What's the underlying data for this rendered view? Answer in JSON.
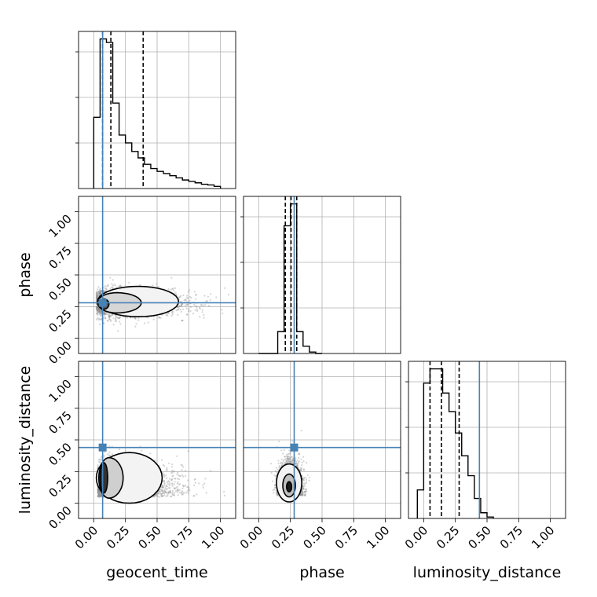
{
  "chart_data": {
    "type": "corner",
    "parameters": [
      "geocent_time",
      "phase",
      "luminosity_distance"
    ],
    "axis_range": [
      -0.12,
      1.12
    ],
    "tick_values": [
      0.0,
      0.25,
      0.5,
      0.75,
      1.0
    ],
    "tick_labels": [
      "0.00",
      "0.25",
      "0.50",
      "0.75",
      "1.00"
    ],
    "grid": true,
    "colors": {
      "truth": "#4682b4",
      "hist": "#000000",
      "points": "#888888"
    },
    "truths": {
      "geocent_time": 0.07,
      "phase": 0.28,
      "luminosity_distance": 0.44
    },
    "quantiles": {
      "geocent_time": [
        0.07,
        0.135,
        0.39
      ],
      "phase": [
        0.21,
        0.255,
        0.3
      ],
      "luminosity_distance": [
        0.05,
        0.14,
        0.28
      ]
    },
    "histograms": {
      "geocent_time": {
        "bins": [
          0.0,
          0.05,
          0.1,
          0.15,
          0.2,
          0.25,
          0.3,
          0.35,
          0.4,
          0.45,
          0.5,
          0.55,
          0.6,
          0.65,
          0.7,
          0.75,
          0.8,
          0.85,
          0.9,
          0.95,
          1.0
        ],
        "counts": [
          1.0,
          2.1,
          2.05,
          1.2,
          0.75,
          0.64,
          0.52,
          0.43,
          0.34,
          0.28,
          0.24,
          0.21,
          0.18,
          0.15,
          0.12,
          0.1,
          0.08,
          0.06,
          0.05,
          0.03
        ]
      },
      "phase": {
        "bins": [
          0.0,
          0.05,
          0.1,
          0.15,
          0.2,
          0.25,
          0.3,
          0.35,
          0.4,
          0.45,
          0.5
        ],
        "counts": [
          0.0,
          0.0,
          0.0,
          0.3,
          1.75,
          2.05,
          0.3,
          0.1,
          0.02,
          0.0
        ]
      },
      "luminosity_distance": {
        "bins": [
          -0.05,
          0.0,
          0.05,
          0.1,
          0.15,
          0.2,
          0.25,
          0.3,
          0.35,
          0.4,
          0.45,
          0.5,
          0.55
        ],
        "counts": [
          0.2,
          0.95,
          1.05,
          1.05,
          0.88,
          0.75,
          0.6,
          0.44,
          0.3,
          0.14,
          0.04,
          0.01
        ]
      }
    },
    "contour_centers": {
      "geocent_time_vs_phase": [
        0.07,
        0.28
      ],
      "geocent_time_vs_luminosity_distance": [
        0.08,
        0.2
      ],
      "phase_vs_luminosity_distance": [
        0.24,
        0.16
      ]
    }
  }
}
